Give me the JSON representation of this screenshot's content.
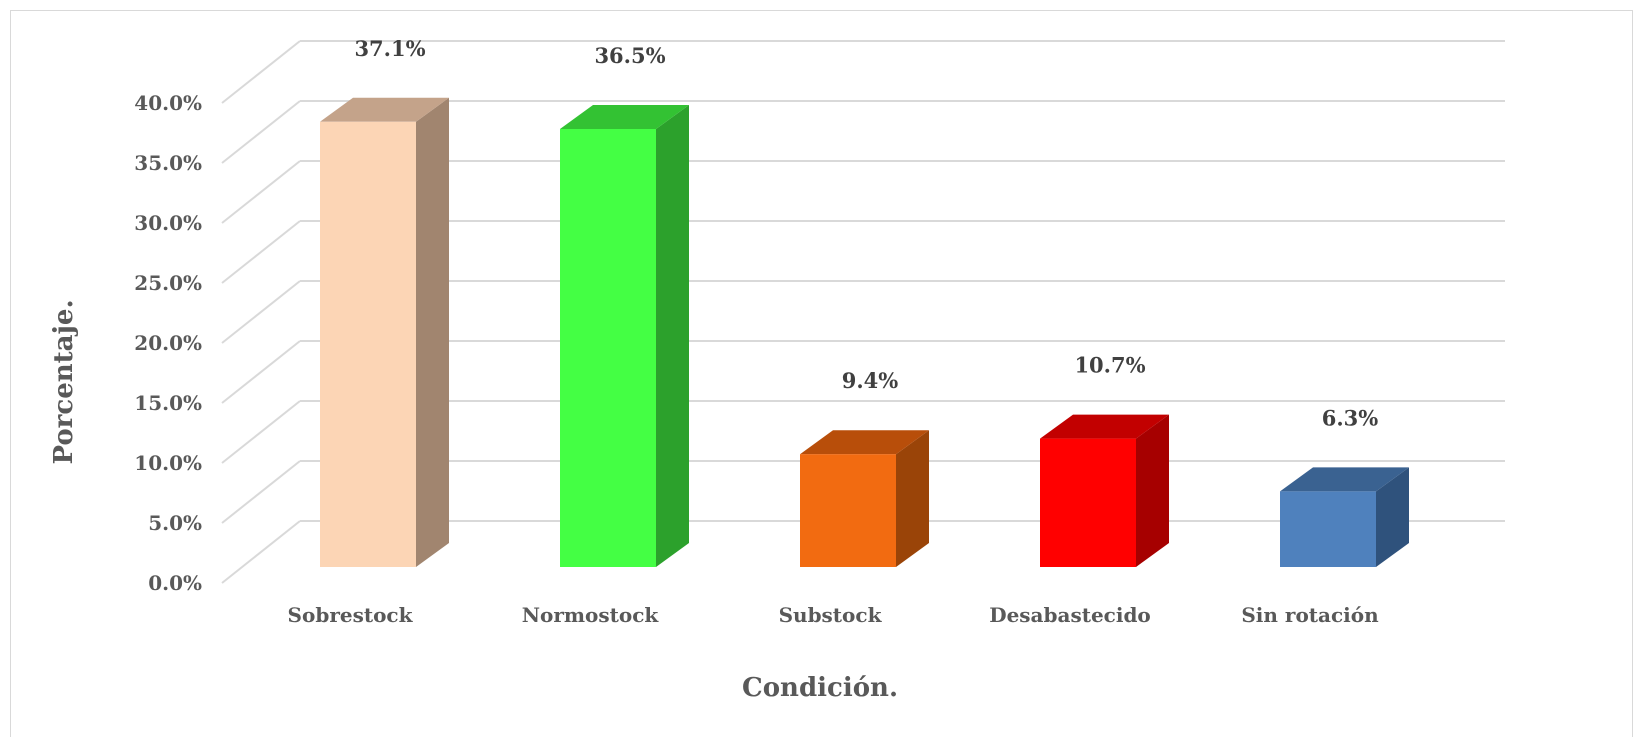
{
  "chart_data": {
    "type": "bar",
    "style": "3d-column",
    "title": "",
    "xlabel": "Condición.",
    "ylabel": "Porcentaje.",
    "categories": [
      "Sobrestock",
      "Normostock",
      "Substock",
      "Desabastecido",
      "Sin rotación"
    ],
    "values": [
      37.1,
      36.5,
      9.4,
      10.7,
      6.3
    ],
    "value_labels": [
      "37.1%",
      "36.5%",
      "9.4%",
      "10.7%",
      "6.3%"
    ],
    "bar_colors": [
      "#fcd5b5",
      "#44ff44",
      "#f26b11",
      "#ff0000",
      "#4f81bd"
    ],
    "side_colors": [
      "#a1856f",
      "#2ca12c",
      "#9a4408",
      "#a60000",
      "#2f527c"
    ],
    "top_colors": [
      "#c4a38a",
      "#33c233",
      "#b84e0a",
      "#c20000",
      "#3a6291"
    ],
    "ylim": [
      0,
      40
    ],
    "y_ticks": [
      "0.0%",
      "5.0%",
      "10.0%",
      "15.0%",
      "20.0%",
      "25.0%",
      "30.0%",
      "35.0%",
      "40.0%"
    ],
    "grid": true,
    "legend": "none",
    "grid_color": "#d9d9d9"
  }
}
